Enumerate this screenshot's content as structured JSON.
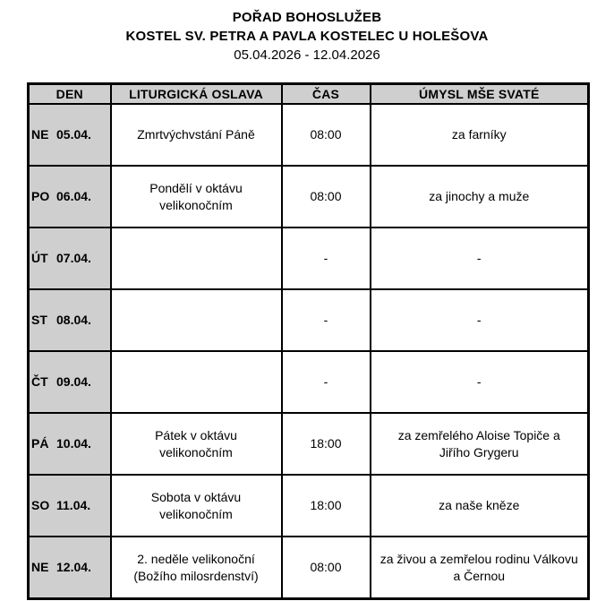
{
  "header": {
    "title": "POŘAD BOHOSLUŽEB",
    "subtitle": "KOSTEL SV. PETRA A PAVLA KOSTELEC U HOLEŠOVA",
    "date_range": "05.04.2026 - 12.04.2026"
  },
  "table": {
    "columns": [
      "DEN",
      "LITURGICKÁ OSLAVA",
      "ČAS",
      "ÚMYSL MŠE SVATÉ"
    ],
    "rows": [
      {
        "day": "NE",
        "date": "05.04.",
        "celebration": "Zmrtvýchvstání Páně",
        "time": "08:00",
        "intention": "za farníky"
      },
      {
        "day": "PO",
        "date": "06.04.",
        "celebration": "Pondělí v oktávu\nvelikonočním",
        "time": "08:00",
        "intention": "za jinochy a muže"
      },
      {
        "day": "ÚT",
        "date": "07.04.",
        "celebration": "",
        "time": "-",
        "intention": "-"
      },
      {
        "day": "ST",
        "date": "08.04.",
        "celebration": "",
        "time": "-",
        "intention": "-"
      },
      {
        "day": "ČT",
        "date": "09.04.",
        "celebration": "",
        "time": "-",
        "intention": "-"
      },
      {
        "day": "PÁ",
        "date": "10.04.",
        "celebration": "Pátek v oktávu\nvelikonočním",
        "time": "18:00",
        "intention": "za zemřelého Aloise Topiče a\nJiřího Grygeru"
      },
      {
        "day": "SO",
        "date": "11.04.",
        "celebration": "Sobota v oktávu\nvelikonočním",
        "time": "18:00",
        "intention": "za naše kněze"
      },
      {
        "day": "NE",
        "date": "12.04.",
        "celebration": "2. neděle velikonoční\n(Božího milosrdenství)",
        "time": "08:00",
        "intention": "za živou a zemřelou rodinu Válkovu\na Černou"
      }
    ],
    "colors": {
      "header_bg": "#cfcfcf",
      "day_column_bg": "#cfcfcf",
      "border": "#000000"
    }
  }
}
